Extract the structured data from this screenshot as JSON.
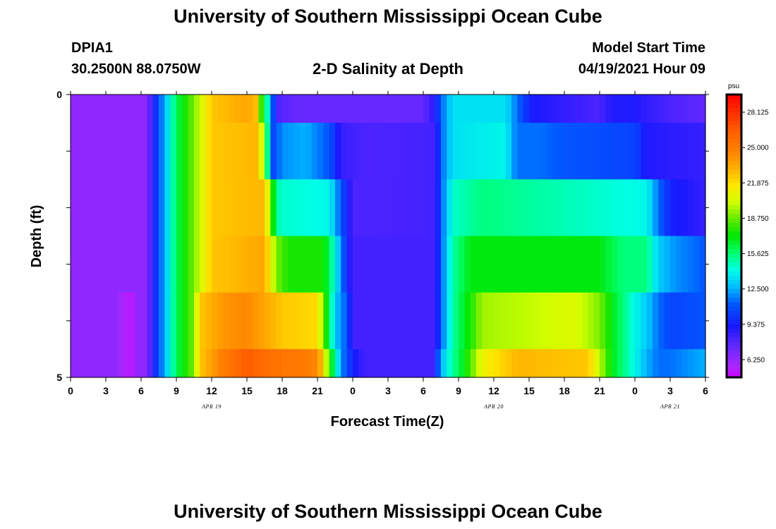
{
  "page": {
    "title_top": "University of Southern Mississippi Ocean Cube",
    "title_bottom": "University of Southern Mississippi Ocean Cube",
    "station_id": "DPIA1",
    "station_coords": "30.2500N  88.0750W",
    "plot_title": "2-D Salinity at Depth",
    "model_label": "Model Start Time",
    "model_time": "04/19/2021 Hour 09"
  },
  "chart_data": {
    "type": "heatmap",
    "title": "2-D Salinity at Depth",
    "xlabel": "Forecast Time(Z)",
    "ylabel": "Depth (ft)",
    "x_range_hours": [
      0,
      54
    ],
    "y_range": [
      0,
      5
    ],
    "x_ticks": [
      "0",
      "3",
      "6",
      "9",
      "12",
      "15",
      "18",
      "21",
      "0",
      "3",
      "6",
      "9",
      "12",
      "15",
      "18",
      "21",
      "0",
      "3",
      "6"
    ],
    "y_ticks": [
      "0",
      "5"
    ],
    "date_labels": [
      {
        "text": "APR 19",
        "hour": 12
      },
      {
        "text": "APR 20",
        "hour": 36
      },
      {
        "text": "APR 21",
        "hour": 51
      }
    ],
    "colorbar": {
      "unit": "psu",
      "min": 4.6875,
      "max": 29.6875,
      "ticks": [
        "28.125",
        "25.000",
        "21.875",
        "18.750",
        "15.625",
        "12.500",
        "9.375",
        "6.250"
      ]
    },
    "layers": [
      {
        "depth": "0.0-0.5",
        "keys": [
          [
            0,
            6.4
          ],
          [
            6.5,
            6.4
          ],
          [
            7.1,
            9.5
          ],
          [
            8,
            12.5
          ],
          [
            9,
            16
          ],
          [
            10.5,
            19
          ],
          [
            12,
            22.5
          ],
          [
            15,
            23.5
          ],
          [
            16,
            22.5
          ],
          [
            16.5,
            13.5
          ],
          [
            17,
            16
          ],
          [
            17.2,
            11
          ],
          [
            17.5,
            8
          ],
          [
            19,
            7.4
          ],
          [
            30,
            7.4
          ],
          [
            31,
            9
          ],
          [
            31.6,
            11.5
          ],
          [
            32.5,
            13.5
          ],
          [
            37,
            13.5
          ],
          [
            37.5,
            12.5
          ],
          [
            38,
            11.5
          ],
          [
            39,
            9.5
          ],
          [
            40,
            9
          ],
          [
            45,
            8
          ],
          [
            46,
            9
          ],
          [
            48,
            9
          ],
          [
            51,
            8
          ],
          [
            54,
            7.5
          ]
        ]
      },
      {
        "depth": "0.5-1.5",
        "keys": [
          [
            0,
            6.4
          ],
          [
            6.5,
            6.4
          ],
          [
            7.1,
            9.5
          ],
          [
            8,
            12.5
          ],
          [
            9,
            16
          ],
          [
            10.5,
            19
          ],
          [
            12,
            22.5
          ],
          [
            16,
            23
          ],
          [
            16.5,
            18
          ],
          [
            17.2,
            10.5
          ],
          [
            18,
            12
          ],
          [
            20,
            12.5
          ],
          [
            22,
            11
          ],
          [
            23,
            8.5
          ],
          [
            25,
            8
          ],
          [
            31,
            8.2
          ],
          [
            31.6,
            11.5
          ],
          [
            32.5,
            13.5
          ],
          [
            37,
            14
          ],
          [
            37.5,
            12.5
          ],
          [
            38,
            11.5
          ],
          [
            40,
            11.5
          ],
          [
            42,
            11
          ],
          [
            48,
            10.5
          ],
          [
            49,
            9
          ],
          [
            54,
            8.5
          ]
        ]
      },
      {
        "depth": "1.5-2.5",
        "keys": [
          [
            0,
            6.4
          ],
          [
            6.5,
            6.4
          ],
          [
            7.1,
            9.5
          ],
          [
            8,
            12.5
          ],
          [
            9,
            16
          ],
          [
            10.5,
            19
          ],
          [
            12,
            22.5
          ],
          [
            16.5,
            23
          ],
          [
            17,
            19
          ],
          [
            17.5,
            15
          ],
          [
            18,
            14.5
          ],
          [
            22,
            14
          ],
          [
            23,
            11
          ],
          [
            24,
            8
          ],
          [
            31,
            8.2
          ],
          [
            31.6,
            11.5
          ],
          [
            32.5,
            14.5
          ],
          [
            35,
            15.5
          ],
          [
            40,
            15
          ],
          [
            45,
            14.5
          ],
          [
            49,
            14
          ],
          [
            50,
            11.5
          ],
          [
            51,
            9.5
          ],
          [
            54,
            8.5
          ]
        ]
      },
      {
        "depth": "2.5-3.5",
        "keys": [
          [
            0,
            6.4
          ],
          [
            6.5,
            6.4
          ],
          [
            7.1,
            9.5
          ],
          [
            8,
            12.5
          ],
          [
            9,
            16
          ],
          [
            10.5,
            19
          ],
          [
            12,
            22.5
          ],
          [
            16.5,
            23.5
          ],
          [
            17,
            21
          ],
          [
            17.5,
            19
          ],
          [
            18.5,
            17.5
          ],
          [
            21.5,
            17.5
          ],
          [
            22,
            16
          ],
          [
            22.5,
            14
          ],
          [
            23,
            12
          ],
          [
            23.5,
            9.5
          ],
          [
            24,
            8.2
          ],
          [
            31,
            8.2
          ],
          [
            31.6,
            11.5
          ],
          [
            32.5,
            15
          ],
          [
            34,
            17
          ],
          [
            45,
            17
          ],
          [
            47,
            15.5
          ],
          [
            49,
            15.5
          ],
          [
            50,
            13
          ],
          [
            51.5,
            12
          ],
          [
            53,
            11.5
          ],
          [
            54,
            11
          ]
        ]
      },
      {
        "depth": "3.5-4.5",
        "keys": [
          [
            0,
            6.4
          ],
          [
            4,
            6.4
          ],
          [
            4.5,
            5.4
          ],
          [
            5.3,
            5.4
          ],
          [
            5.7,
            6.4
          ],
          [
            6.5,
            6.4
          ],
          [
            7.1,
            9.5
          ],
          [
            8,
            12.5
          ],
          [
            9,
            16
          ],
          [
            10.5,
            19
          ],
          [
            11,
            22.5
          ],
          [
            13,
            24
          ],
          [
            15,
            24.5
          ],
          [
            16.5,
            23.5
          ],
          [
            18,
            22.5
          ],
          [
            21,
            22
          ],
          [
            21.5,
            19
          ],
          [
            22,
            16
          ],
          [
            22.5,
            13
          ],
          [
            23.5,
            11
          ],
          [
            24,
            8.2
          ],
          [
            31,
            8.2
          ],
          [
            31.6,
            11.5
          ],
          [
            32.5,
            15
          ],
          [
            34,
            17.5
          ],
          [
            35,
            19.5
          ],
          [
            43,
            20.5
          ],
          [
            45,
            19
          ],
          [
            46,
            17
          ],
          [
            47,
            15.5
          ],
          [
            48,
            14
          ],
          [
            49,
            13
          ],
          [
            50,
            11.5
          ],
          [
            51,
            10.5
          ],
          [
            54,
            11
          ]
        ]
      },
      {
        "depth": "4.5-5.0",
        "keys": [
          [
            0,
            6.4
          ],
          [
            4,
            6.4
          ],
          [
            4.5,
            5.4
          ],
          [
            5.3,
            5.4
          ],
          [
            5.7,
            6.4
          ],
          [
            6.5,
            6.4
          ],
          [
            7.1,
            9.5
          ],
          [
            8,
            12.5
          ],
          [
            9,
            16
          ],
          [
            10.5,
            19
          ],
          [
            11,
            22.5
          ],
          [
            13,
            25
          ],
          [
            15,
            26.5
          ],
          [
            17,
            25.5
          ],
          [
            20,
            25
          ],
          [
            21,
            24.5
          ],
          [
            21.5,
            22
          ],
          [
            22,
            18
          ],
          [
            22.5,
            15
          ],
          [
            23,
            12
          ],
          [
            24,
            9.5
          ],
          [
            25,
            8.2
          ],
          [
            31,
            8.2
          ],
          [
            31.3,
            11.5
          ],
          [
            32,
            14
          ],
          [
            33.5,
            17
          ],
          [
            35,
            21
          ],
          [
            38,
            23
          ],
          [
            44,
            22.5
          ],
          [
            45,
            20
          ],
          [
            46,
            17
          ],
          [
            47,
            15.5
          ],
          [
            48,
            14
          ],
          [
            49,
            12.5
          ],
          [
            50,
            11.5
          ],
          [
            51,
            11.5
          ],
          [
            54,
            12.5
          ]
        ]
      }
    ]
  }
}
